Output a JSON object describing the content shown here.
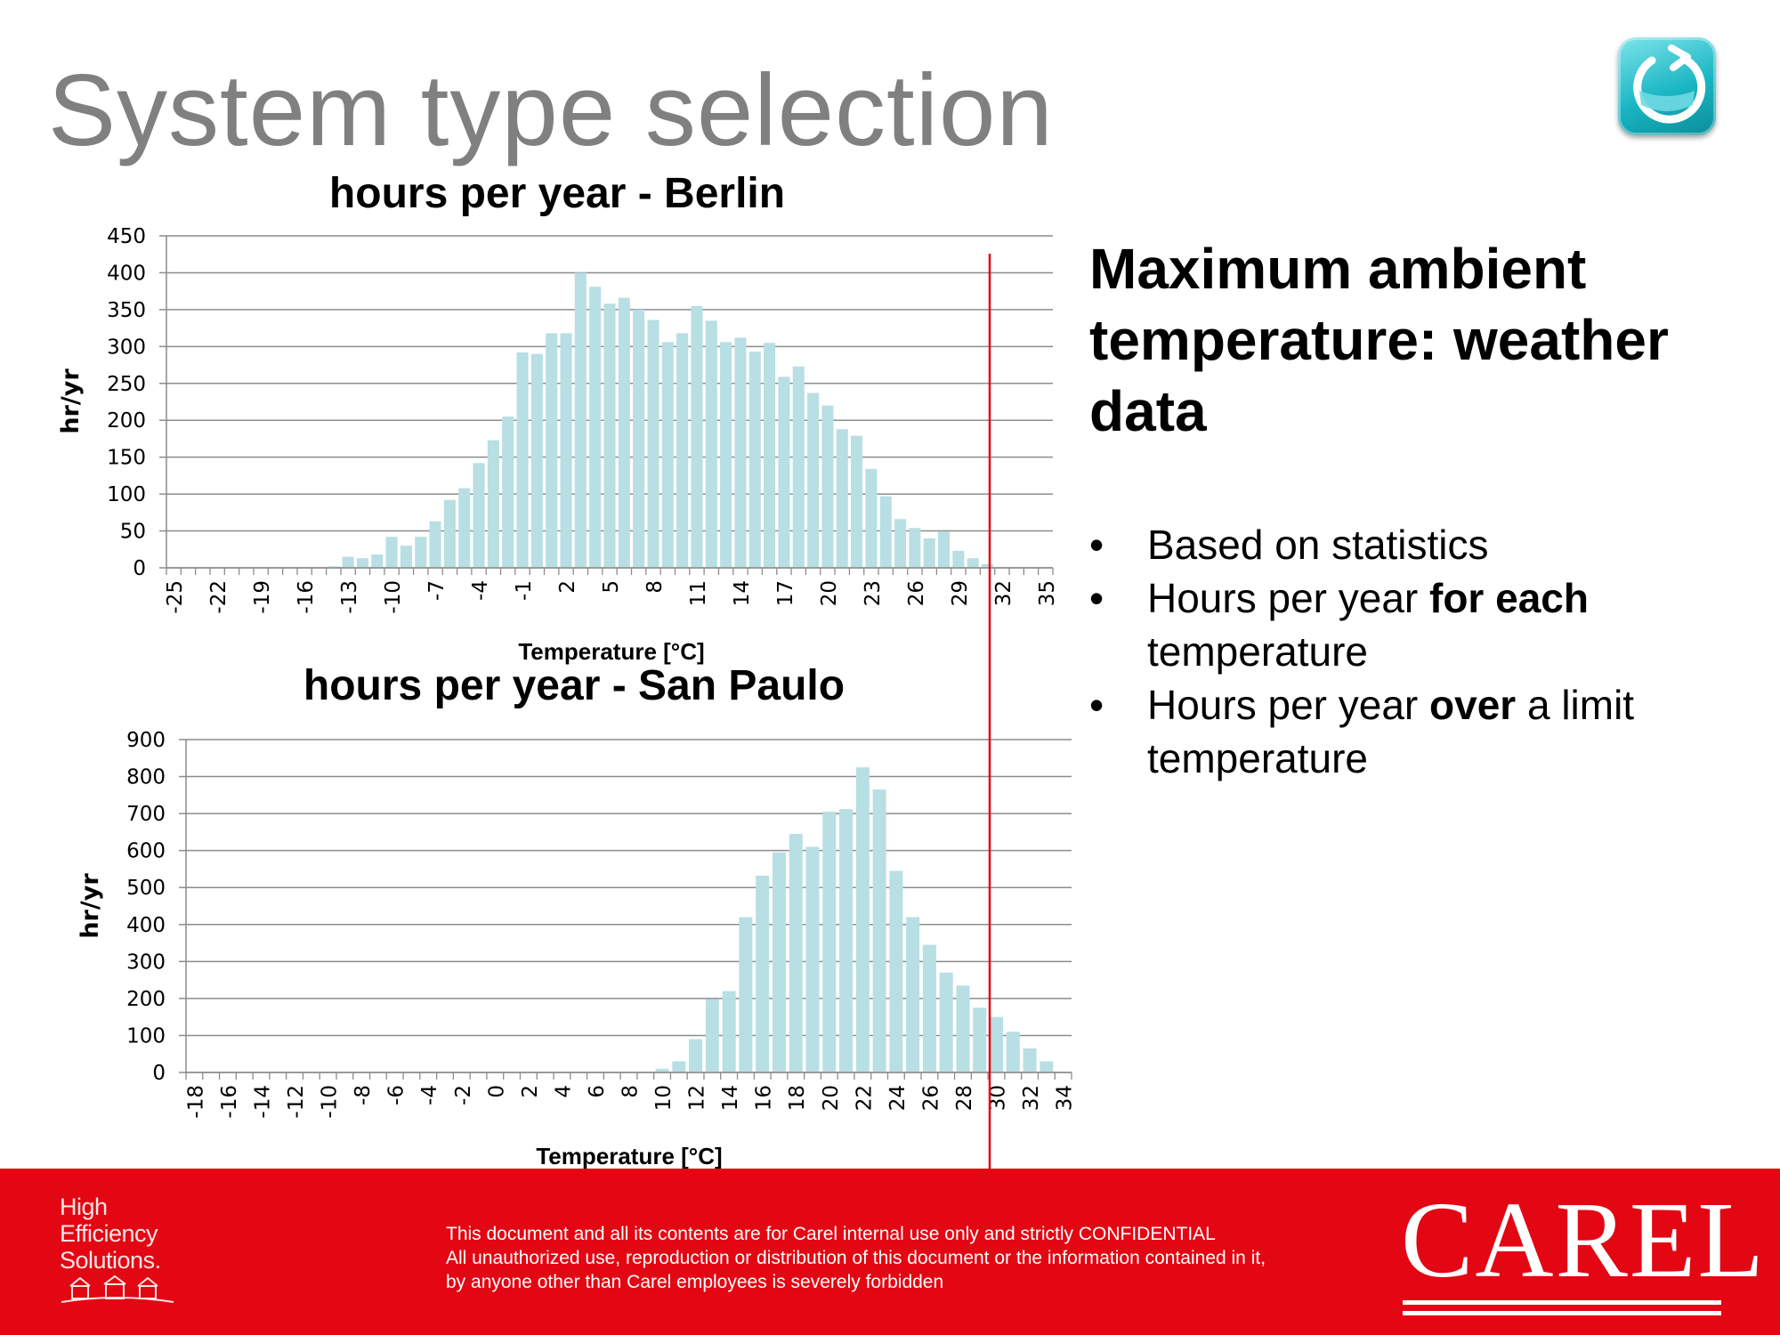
{
  "slide": {
    "title": "System type selection"
  },
  "side_panel": {
    "heading": "Maximum ambient temperature: weather data",
    "bullets": [
      {
        "parts": [
          {
            "text": "Based on statistics",
            "bold": false
          }
        ]
      },
      {
        "parts": [
          {
            "text": "Hours per year ",
            "bold": false
          },
          {
            "text": "for each",
            "bold": true
          },
          {
            "text": " temperature",
            "bold": false
          }
        ]
      },
      {
        "parts": [
          {
            "text": "Hours per year ",
            "bold": false
          },
          {
            "text": "over",
            "bold": true
          },
          {
            "text": " a limit temperature",
            "bold": false
          }
        ]
      }
    ]
  },
  "footer": {
    "tagline_lines": [
      "High",
      "Efficiency",
      "Solutions."
    ],
    "disclaimer_lines": [
      "This document and all its contents are for Carel internal use only and strictly  CONFIDENTIAL",
      "All unauthorized use, reproduction or distribution of this document or the information contained in it,",
      "by anyone other than Carel employees is severely forbidden"
    ],
    "brand": "CAREL"
  },
  "chart_data": [
    {
      "type": "bar",
      "title": "hours per year - Berlin",
      "xlabel": "Temperature [°C]",
      "ylabel": "hr/yr",
      "ylim": [
        0,
        450
      ],
      "yticks": [
        0,
        50,
        100,
        150,
        200,
        250,
        300,
        350,
        400,
        450
      ],
      "x": [
        -25,
        -24,
        -23,
        -22,
        -21,
        -20,
        -19,
        -18,
        -17,
        -16,
        -15,
        -14,
        -13,
        -12,
        -11,
        -10,
        -9,
        -8,
        -7,
        -6,
        -5,
        -4,
        -3,
        -2,
        -1,
        0,
        1,
        2,
        3,
        4,
        5,
        6,
        7,
        8,
        9,
        10,
        11,
        12,
        13,
        14,
        15,
        16,
        17,
        18,
        19,
        20,
        21,
        22,
        23,
        24,
        25,
        26,
        27,
        28,
        29,
        30,
        31,
        32,
        33,
        34,
        35
      ],
      "x_tick_labels": [
        "-25",
        "-22",
        "-19",
        "-16",
        "-13",
        "-10",
        "-7",
        "-4",
        "-1",
        "2",
        "5",
        "8",
        "11",
        "14",
        "17",
        "20",
        "23",
        "26",
        "29",
        "32",
        "35"
      ],
      "values": [
        0,
        0,
        0,
        0,
        0,
        0,
        0,
        0,
        0,
        0,
        0,
        2,
        15,
        13,
        18,
        42,
        30,
        42,
        63,
        92,
        108,
        142,
        173,
        205,
        292,
        290,
        318,
        318,
        400,
        381,
        358,
        366,
        350,
        336,
        306,
        318,
        355,
        335,
        306,
        312,
        293,
        305,
        259,
        273,
        237,
        220,
        188,
        179,
        134,
        97,
        66,
        54,
        40,
        49,
        23,
        13,
        5,
        0,
        0,
        0,
        0
      ],
      "grid": true,
      "legend": "none",
      "bar_color": "#b8dfe3",
      "limit_line": {
        "x": 31,
        "color": "#e30613"
      }
    },
    {
      "type": "bar",
      "title": "hours per year - San Paulo",
      "xlabel": "Temperature [°C]",
      "ylabel": "hr/yr",
      "ylim": [
        0,
        900
      ],
      "yticks": [
        0,
        100,
        200,
        300,
        400,
        500,
        600,
        700,
        800,
        900
      ],
      "x": [
        -18,
        -17,
        -16,
        -15,
        -14,
        -13,
        -12,
        -11,
        -10,
        -9,
        -8,
        -7,
        -6,
        -5,
        -4,
        -3,
        -2,
        -1,
        0,
        1,
        2,
        3,
        4,
        5,
        6,
        7,
        8,
        9,
        10,
        11,
        12,
        13,
        14,
        15,
        16,
        17,
        18,
        19,
        20,
        21,
        22,
        23,
        24,
        25,
        26,
        27,
        28,
        29,
        30,
        31,
        32,
        33,
        34
      ],
      "x_tick_labels": [
        "-18",
        "-16",
        "-14",
        "-12",
        "-10",
        "-8",
        "-6",
        "-4",
        "-2",
        "0",
        "2",
        "4",
        "6",
        "8",
        "10",
        "12",
        "14",
        "16",
        "18",
        "20",
        "22",
        "24",
        "26",
        "28",
        "30",
        "32",
        "34"
      ],
      "values": [
        0,
        0,
        0,
        0,
        0,
        0,
        0,
        0,
        0,
        0,
        0,
        0,
        0,
        0,
        0,
        0,
        0,
        0,
        0,
        0,
        0,
        0,
        0,
        0,
        0,
        0,
        0,
        0,
        10,
        30,
        90,
        198,
        220,
        420,
        532,
        595,
        645,
        610,
        705,
        712,
        825,
        765,
        545,
        420,
        345,
        270,
        235,
        175,
        150,
        110,
        65,
        30,
        0
      ],
      "grid": true,
      "legend": "none",
      "bar_color": "#b8dfe3",
      "limit_line": {
        "x": 30,
        "color": "#e30613"
      }
    }
  ]
}
